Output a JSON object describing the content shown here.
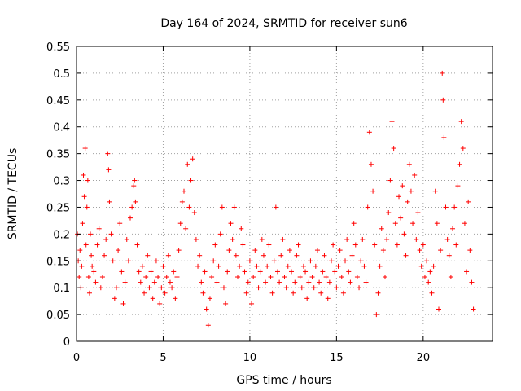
{
  "chart_data": {
    "type": "scatter",
    "title": "Day 164 of 2024, SRMTID for receiver sun6",
    "xlabel": "GPS time / hours",
    "ylabel": "SRMTID / TECUs",
    "xlim": [
      0,
      24
    ],
    "ylim": [
      0,
      0.55
    ],
    "x_ticks": [
      0,
      5,
      10,
      15,
      20
    ],
    "x_tick_labels": [
      "0",
      "5",
      "10",
      "15",
      "20"
    ],
    "y_ticks": [
      0,
      0.05,
      0.1,
      0.15,
      0.2,
      0.25,
      0.3,
      0.35,
      0.4,
      0.45,
      0.5,
      0.55
    ],
    "y_tick_labels": [
      "0",
      "0.05",
      "0.1",
      "0.15",
      "0.2",
      "0.25",
      "0.3",
      "0.35",
      "0.4",
      "0.45",
      "0.5",
      "0.55"
    ],
    "grid": true,
    "marker": "+",
    "marker_color": "#ff0000",
    "series": [
      {
        "name": "SRMTID",
        "points": [
          [
            0.05,
            0.2
          ],
          [
            0.1,
            0.15
          ],
          [
            0.15,
            0.12
          ],
          [
            0.2,
            0.17
          ],
          [
            0.25,
            0.1
          ],
          [
            0.3,
            0.14
          ],
          [
            0.35,
            0.22
          ],
          [
            0.4,
            0.31
          ],
          [
            0.45,
            0.27
          ],
          [
            0.5,
            0.36
          ],
          [
            0.55,
            0.18
          ],
          [
            0.6,
            0.25
          ],
          [
            0.65,
            0.3
          ],
          [
            0.7,
            0.12
          ],
          [
            0.75,
            0.09
          ],
          [
            0.8,
            0.2
          ],
          [
            0.85,
            0.16
          ],
          [
            0.9,
            0.14
          ],
          [
            1.0,
            0.13
          ],
          [
            1.1,
            0.11
          ],
          [
            1.2,
            0.18
          ],
          [
            1.3,
            0.21
          ],
          [
            1.4,
            0.1
          ],
          [
            1.5,
            0.12
          ],
          [
            1.6,
            0.16
          ],
          [
            1.7,
            0.19
          ],
          [
            1.8,
            0.35
          ],
          [
            1.85,
            0.32
          ],
          [
            1.9,
            0.26
          ],
          [
            2.0,
            0.2
          ],
          [
            2.1,
            0.15
          ],
          [
            2.2,
            0.08
          ],
          [
            2.3,
            0.1
          ],
          [
            2.4,
            0.17
          ],
          [
            2.5,
            0.22
          ],
          [
            2.6,
            0.13
          ],
          [
            2.7,
            0.07
          ],
          [
            2.8,
            0.11
          ],
          [
            2.9,
            0.19
          ],
          [
            3.0,
            0.15
          ],
          [
            3.1,
            0.23
          ],
          [
            3.2,
            0.25
          ],
          [
            3.3,
            0.29
          ],
          [
            3.35,
            0.3
          ],
          [
            3.4,
            0.26
          ],
          [
            3.5,
            0.18
          ],
          [
            3.6,
            0.13
          ],
          [
            3.7,
            0.11
          ],
          [
            3.8,
            0.14
          ],
          [
            3.9,
            0.09
          ],
          [
            4.0,
            0.12
          ],
          [
            4.1,
            0.16
          ],
          [
            4.2,
            0.1
          ],
          [
            4.3,
            0.13
          ],
          [
            4.4,
            0.08
          ],
          [
            4.5,
            0.11
          ],
          [
            4.6,
            0.15
          ],
          [
            4.7,
            0.12
          ],
          [
            4.8,
            0.07
          ],
          [
            4.9,
            0.1
          ],
          [
            5.0,
            0.14
          ],
          [
            5.1,
            0.09
          ],
          [
            5.2,
            0.12
          ],
          [
            5.3,
            0.16
          ],
          [
            5.4,
            0.11
          ],
          [
            5.5,
            0.1
          ],
          [
            5.6,
            0.13
          ],
          [
            5.7,
            0.08
          ],
          [
            5.8,
            0.12
          ],
          [
            5.9,
            0.17
          ],
          [
            6.0,
            0.22
          ],
          [
            6.1,
            0.26
          ],
          [
            6.2,
            0.28
          ],
          [
            6.3,
            0.21
          ],
          [
            6.4,
            0.33
          ],
          [
            6.5,
            0.25
          ],
          [
            6.6,
            0.3
          ],
          [
            6.7,
            0.34
          ],
          [
            6.8,
            0.24
          ],
          [
            6.9,
            0.19
          ],
          [
            7.0,
            0.14
          ],
          [
            7.1,
            0.16
          ],
          [
            7.2,
            0.11
          ],
          [
            7.3,
            0.09
          ],
          [
            7.4,
            0.13
          ],
          [
            7.5,
            0.06
          ],
          [
            7.6,
            0.03
          ],
          [
            7.7,
            0.08
          ],
          [
            7.8,
            0.12
          ],
          [
            7.9,
            0.15
          ],
          [
            8.0,
            0.18
          ],
          [
            8.1,
            0.11
          ],
          [
            8.2,
            0.14
          ],
          [
            8.3,
            0.2
          ],
          [
            8.4,
            0.25
          ],
          [
            8.5,
            0.1
          ],
          [
            8.6,
            0.07
          ],
          [
            8.7,
            0.13
          ],
          [
            8.8,
            0.17
          ],
          [
            8.9,
            0.22
          ],
          [
            9.0,
            0.19
          ],
          [
            9.1,
            0.25
          ],
          [
            9.2,
            0.16
          ],
          [
            9.3,
            0.12
          ],
          [
            9.4,
            0.14
          ],
          [
            9.5,
            0.21
          ],
          [
            9.6,
            0.18
          ],
          [
            9.7,
            0.13
          ],
          [
            9.8,
            0.09
          ],
          [
            9.9,
            0.11
          ],
          [
            10.0,
            0.15
          ],
          [
            10.1,
            0.07
          ],
          [
            10.2,
            0.12
          ],
          [
            10.3,
            0.17
          ],
          [
            10.4,
            0.14
          ],
          [
            10.5,
            0.1
          ],
          [
            10.6,
            0.13
          ],
          [
            10.7,
            0.19
          ],
          [
            10.8,
            0.16
          ],
          [
            10.9,
            0.11
          ],
          [
            11.0,
            0.14
          ],
          [
            11.1,
            0.18
          ],
          [
            11.2,
            0.12
          ],
          [
            11.3,
            0.09
          ],
          [
            11.4,
            0.15
          ],
          [
            11.5,
            0.25
          ],
          [
            11.6,
            0.13
          ],
          [
            11.7,
            0.11
          ],
          [
            11.8,
            0.16
          ],
          [
            11.9,
            0.19
          ],
          [
            12.0,
            0.12
          ],
          [
            12.1,
            0.1
          ],
          [
            12.2,
            0.14
          ],
          [
            12.3,
            0.17
          ],
          [
            12.4,
            0.13
          ],
          [
            12.5,
            0.09
          ],
          [
            12.6,
            0.11
          ],
          [
            12.7,
            0.16
          ],
          [
            12.8,
            0.18
          ],
          [
            12.9,
            0.12
          ],
          [
            13.0,
            0.1
          ],
          [
            13.1,
            0.14
          ],
          [
            13.2,
            0.13
          ],
          [
            13.3,
            0.08
          ],
          [
            13.4,
            0.11
          ],
          [
            13.5,
            0.15
          ],
          [
            13.6,
            0.12
          ],
          [
            13.7,
            0.1
          ],
          [
            13.8,
            0.14
          ],
          [
            13.9,
            0.17
          ],
          [
            14.0,
            0.11
          ],
          [
            14.1,
            0.09
          ],
          [
            14.2,
            0.13
          ],
          [
            14.3,
            0.16
          ],
          [
            14.4,
            0.12
          ],
          [
            14.5,
            0.08
          ],
          [
            14.6,
            0.11
          ],
          [
            14.7,
            0.15
          ],
          [
            14.8,
            0.18
          ],
          [
            14.9,
            0.13
          ],
          [
            15.0,
            0.1
          ],
          [
            15.1,
            0.14
          ],
          [
            15.2,
            0.17
          ],
          [
            15.3,
            0.12
          ],
          [
            15.4,
            0.09
          ],
          [
            15.5,
            0.15
          ],
          [
            15.6,
            0.19
          ],
          [
            15.7,
            0.13
          ],
          [
            15.8,
            0.11
          ],
          [
            15.9,
            0.16
          ],
          [
            16.0,
            0.22
          ],
          [
            16.1,
            0.18
          ],
          [
            16.2,
            0.12
          ],
          [
            16.3,
            0.1
          ],
          [
            16.4,
            0.15
          ],
          [
            16.5,
            0.19
          ],
          [
            16.6,
            0.14
          ],
          [
            16.7,
            0.11
          ],
          [
            16.8,
            0.25
          ],
          [
            16.9,
            0.39
          ],
          [
            17.0,
            0.33
          ],
          [
            17.1,
            0.28
          ],
          [
            17.2,
            0.18
          ],
          [
            17.3,
            0.05
          ],
          [
            17.4,
            0.09
          ],
          [
            17.5,
            0.14
          ],
          [
            17.6,
            0.21
          ],
          [
            17.7,
            0.17
          ],
          [
            17.8,
            0.12
          ],
          [
            17.9,
            0.19
          ],
          [
            18.0,
            0.24
          ],
          [
            18.1,
            0.3
          ],
          [
            18.2,
            0.41
          ],
          [
            18.3,
            0.36
          ],
          [
            18.4,
            0.22
          ],
          [
            18.5,
            0.18
          ],
          [
            18.6,
            0.27
          ],
          [
            18.7,
            0.23
          ],
          [
            18.8,
            0.29
          ],
          [
            18.9,
            0.2
          ],
          [
            19.0,
            0.16
          ],
          [
            19.1,
            0.26
          ],
          [
            19.2,
            0.33
          ],
          [
            19.3,
            0.28
          ],
          [
            19.4,
            0.22
          ],
          [
            19.5,
            0.31
          ],
          [
            19.6,
            0.19
          ],
          [
            19.7,
            0.24
          ],
          [
            19.8,
            0.17
          ],
          [
            19.9,
            0.14
          ],
          [
            20.0,
            0.18
          ],
          [
            20.1,
            0.12
          ],
          [
            20.2,
            0.15
          ],
          [
            20.3,
            0.11
          ],
          [
            20.4,
            0.13
          ],
          [
            20.5,
            0.09
          ],
          [
            20.6,
            0.14
          ],
          [
            20.7,
            0.28
          ],
          [
            20.8,
            0.22
          ],
          [
            20.9,
            0.06
          ],
          [
            21.0,
            0.17
          ],
          [
            21.1,
            0.5
          ],
          [
            21.15,
            0.45
          ],
          [
            21.2,
            0.38
          ],
          [
            21.3,
            0.25
          ],
          [
            21.4,
            0.19
          ],
          [
            21.5,
            0.16
          ],
          [
            21.6,
            0.12
          ],
          [
            21.7,
            0.21
          ],
          [
            21.8,
            0.25
          ],
          [
            21.9,
            0.18
          ],
          [
            22.0,
            0.29
          ],
          [
            22.1,
            0.33
          ],
          [
            22.2,
            0.41
          ],
          [
            22.3,
            0.36
          ],
          [
            22.4,
            0.22
          ],
          [
            22.5,
            0.13
          ],
          [
            22.6,
            0.26
          ],
          [
            22.7,
            0.17
          ],
          [
            22.8,
            0.11
          ],
          [
            22.9,
            0.06
          ]
        ]
      }
    ]
  }
}
